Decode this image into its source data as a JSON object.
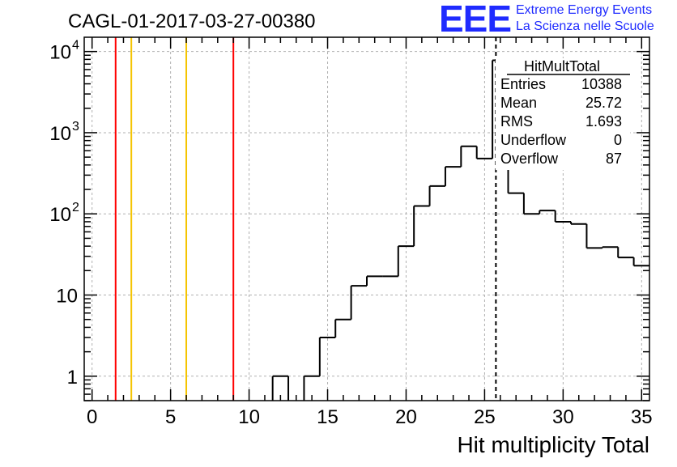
{
  "title": "CAGL-01-2017-03-27-00380",
  "logo": {
    "mark": "EEE",
    "line1": "Extreme Energy Events",
    "line2": "La Scienza nelle Scuole"
  },
  "stats": {
    "name": "HitMultTotal",
    "rows": [
      {
        "label": "Entries",
        "value": "10388"
      },
      {
        "label": "Mean",
        "value": "25.72"
      },
      {
        "label": "RMS",
        "value": "1.693"
      },
      {
        "label": "Underflow",
        "value": "0"
      },
      {
        "label": "Overflow",
        "value": "87"
      }
    ]
  },
  "colors": {
    "red_line": "#ff0000",
    "yellow_line": "#f5c400",
    "histogram": "#000000",
    "grid": "#b0b0b0",
    "logo": "#1f2bff"
  },
  "chart_data": {
    "type": "histogram",
    "xlabel": "Hit multiplicity Total",
    "ylabel": "",
    "xlim": [
      -0.5,
      35.5
    ],
    "ylim": [
      0.5,
      15000
    ],
    "yscale": "log",
    "grid": true,
    "x_ticks": [
      0,
      5,
      10,
      15,
      20,
      25,
      30,
      35
    ],
    "x_tick_labels": [
      "0",
      "5",
      "10",
      "15",
      "20",
      "25",
      "30",
      "35"
    ],
    "y_ticks": [
      1,
      10,
      100,
      1000,
      10000
    ],
    "y_tick_labels": [
      {
        "base": "1",
        "exp": ""
      },
      {
        "base": "10",
        "exp": ""
      },
      {
        "base": "10",
        "exp": "2"
      },
      {
        "base": "10",
        "exp": "3"
      },
      {
        "base": "10",
        "exp": "4"
      }
    ],
    "bins": [
      {
        "low": 11.5,
        "high": 12.5,
        "count": 1
      },
      {
        "low": 12.5,
        "high": 13.5,
        "count": 0
      },
      {
        "low": 13.5,
        "high": 14.5,
        "count": 1
      },
      {
        "low": 14.5,
        "high": 15.5,
        "count": 3
      },
      {
        "low": 15.5,
        "high": 16.5,
        "count": 5
      },
      {
        "low": 16.5,
        "high": 17.5,
        "count": 13
      },
      {
        "low": 17.5,
        "high": 18.5,
        "count": 17
      },
      {
        "low": 18.5,
        "high": 19.5,
        "count": 17
      },
      {
        "low": 19.5,
        "high": 20.5,
        "count": 40
      },
      {
        "low": 20.5,
        "high": 21.5,
        "count": 125
      },
      {
        "low": 21.5,
        "high": 22.5,
        "count": 220
      },
      {
        "low": 22.5,
        "high": 23.5,
        "count": 380
      },
      {
        "low": 23.5,
        "high": 24.5,
        "count": 680
      },
      {
        "low": 24.5,
        "high": 25.5,
        "count": 480
      },
      {
        "low": 25.5,
        "high": 26.5,
        "count": 7800
      },
      {
        "low": 26.5,
        "high": 27.5,
        "count": 180
      },
      {
        "low": 27.5,
        "high": 28.5,
        "count": 100
      },
      {
        "low": 28.5,
        "high": 29.5,
        "count": 110
      },
      {
        "low": 29.5,
        "high": 30.5,
        "count": 80
      },
      {
        "low": 30.5,
        "high": 31.5,
        "count": 75
      },
      {
        "low": 31.5,
        "high": 32.5,
        "count": 38
      },
      {
        "low": 32.5,
        "high": 33.5,
        "count": 39
      },
      {
        "low": 33.5,
        "high": 34.5,
        "count": 29
      },
      {
        "low": 34.5,
        "high": 35.5,
        "count": 23
      }
    ],
    "vertical_lines": [
      {
        "x": 1.5,
        "color": "red"
      },
      {
        "x": 2.5,
        "color": "yellow"
      },
      {
        "x": 6.0,
        "color": "yellow"
      },
      {
        "x": 9.0,
        "color": "red"
      },
      {
        "x": 25.72,
        "color": "black",
        "style": "dashed"
      }
    ]
  }
}
